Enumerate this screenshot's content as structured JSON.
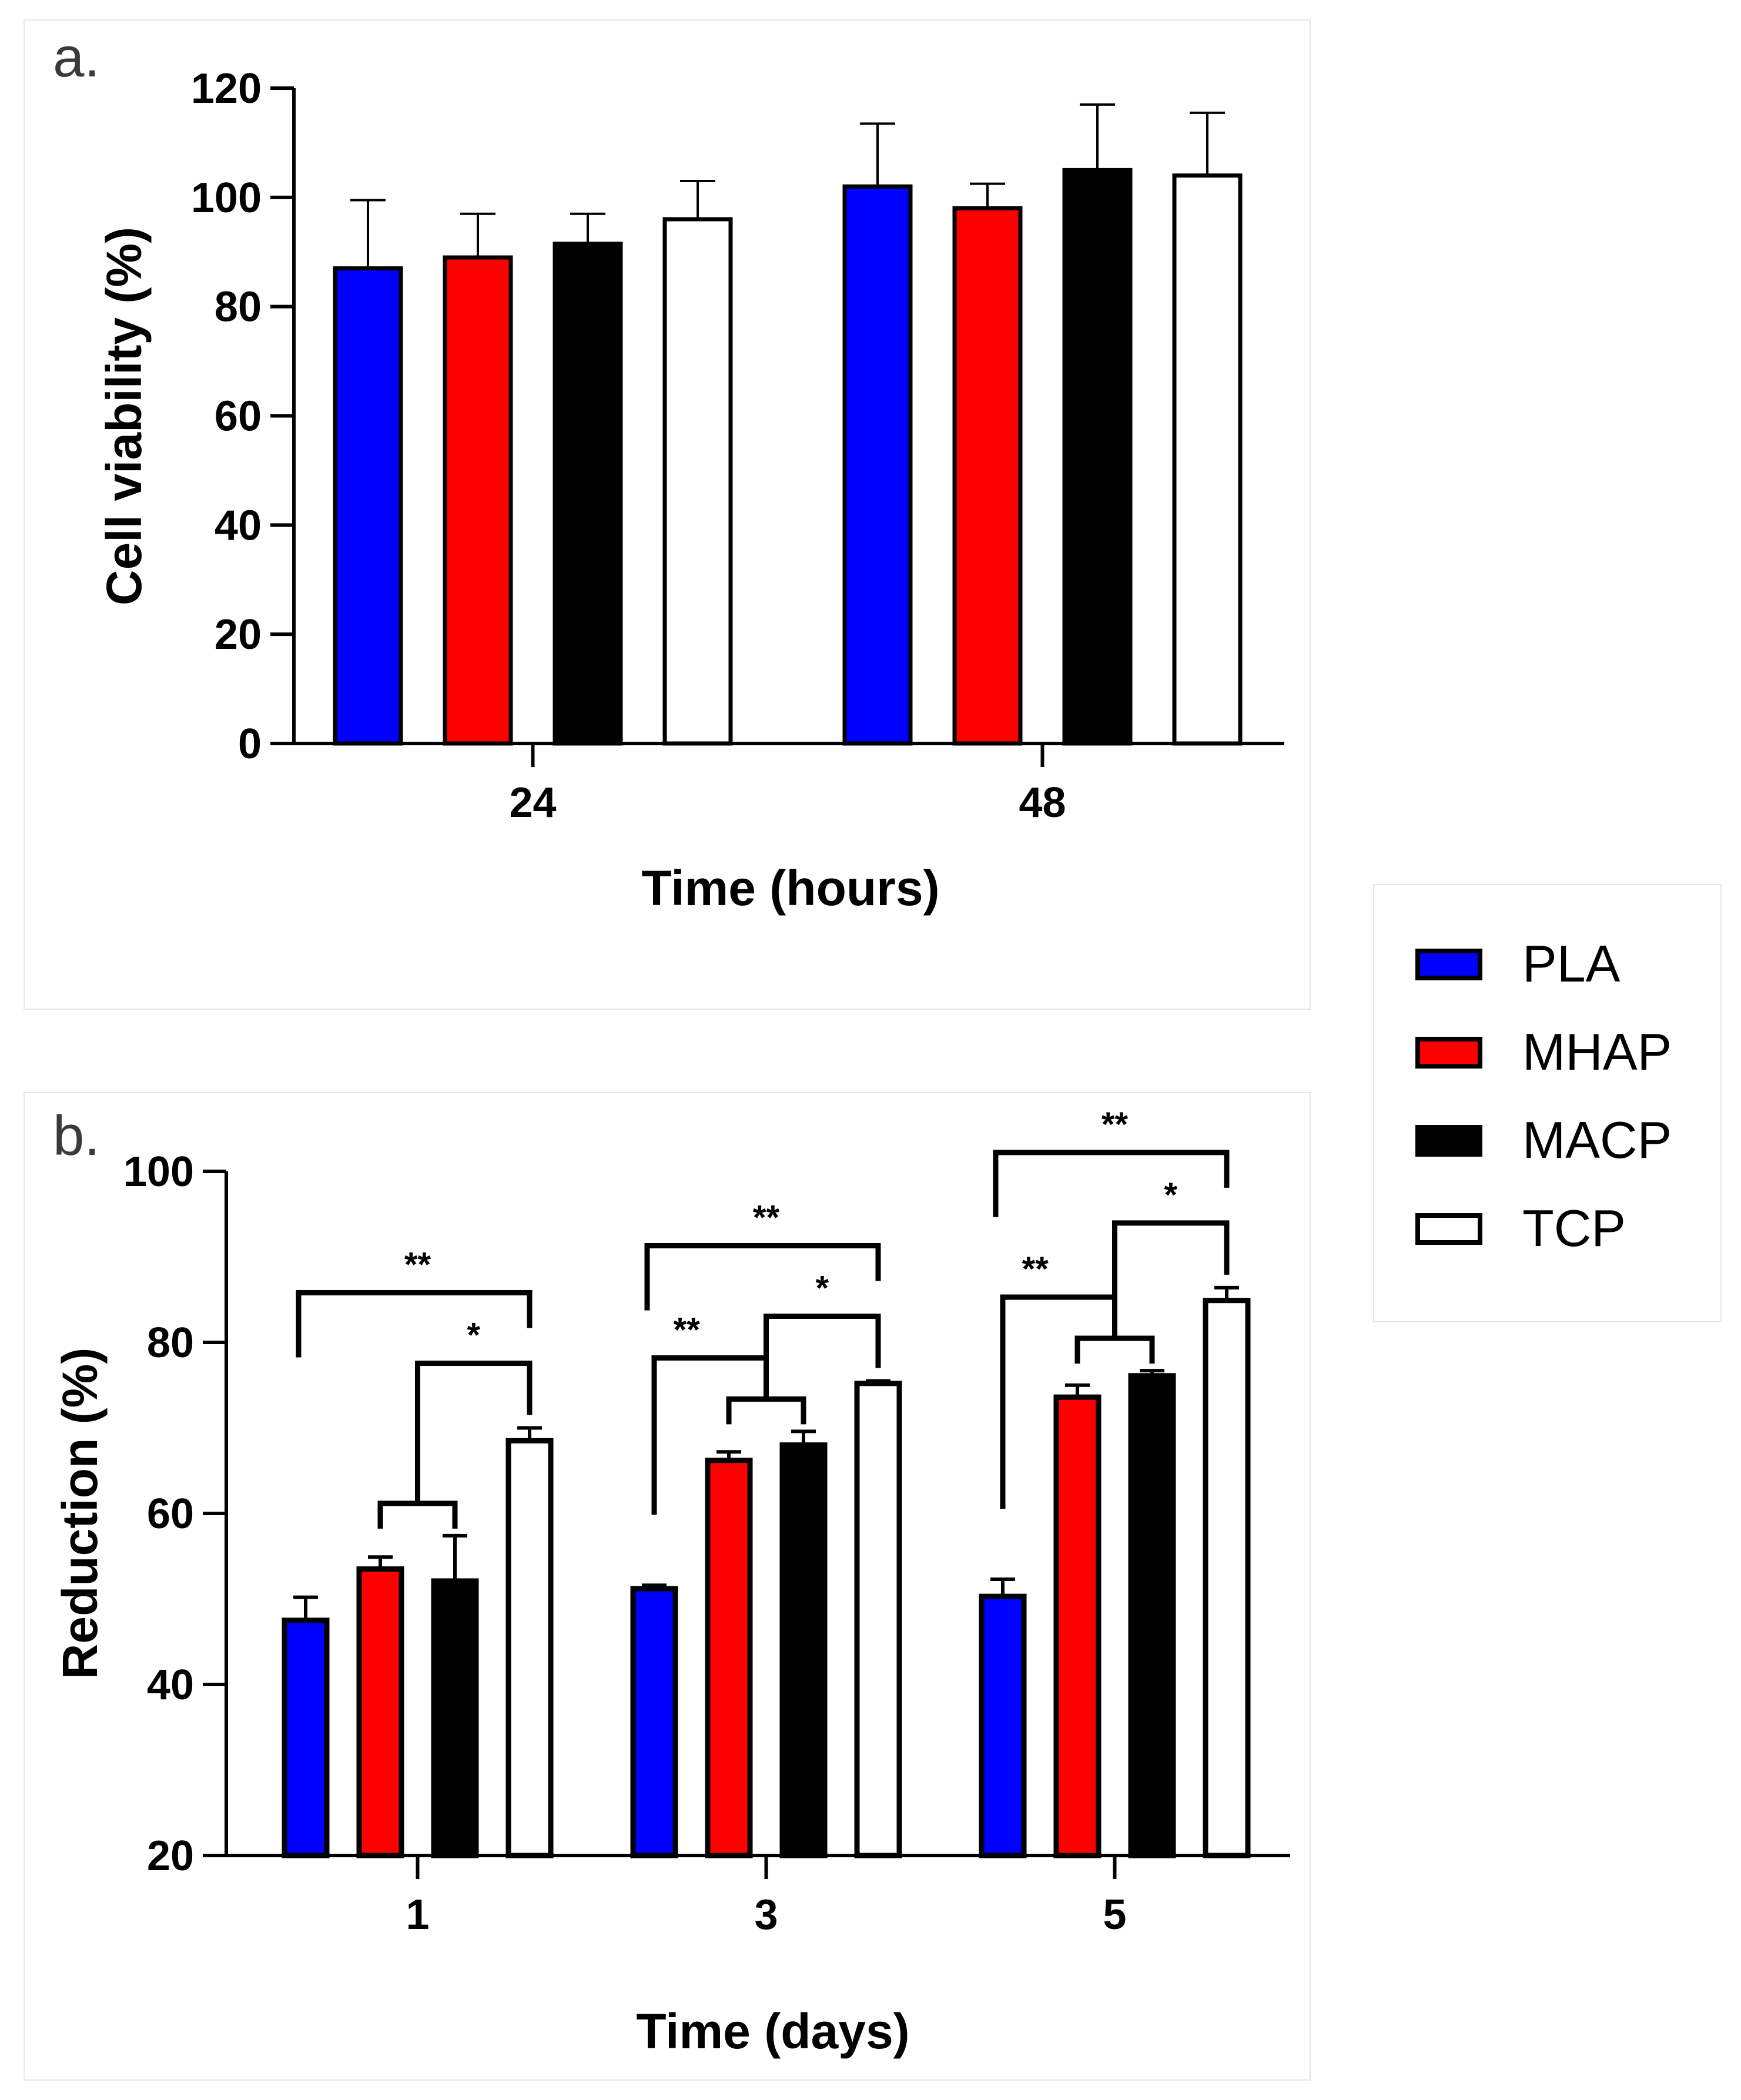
{
  "chart_data": [
    {
      "type": "bar",
      "panel": "a.",
      "categories": [
        "24",
        "48"
      ],
      "series": [
        {
          "name": "PLA",
          "values": [
            87,
            102
          ],
          "errors": [
            12.5,
            11.5
          ],
          "color": "#0000ff"
        },
        {
          "name": "MHAP",
          "values": [
            89,
            98
          ],
          "errors": [
            8,
            4.5
          ],
          "color": "#ff0000"
        },
        {
          "name": "MACP",
          "values": [
            91.5,
            105
          ],
          "errors": [
            5.5,
            12
          ],
          "color": "#000000"
        },
        {
          "name": "TCP",
          "values": [
            96,
            104
          ],
          "errors": [
            7,
            11.5
          ],
          "color": "#ffffff"
        }
      ],
      "xlabel": "Time (hours)",
      "ylabel": "Cell viability (%)",
      "ylim": [
        0,
        120
      ],
      "yticks": [
        "0",
        "20",
        "40",
        "60",
        "80",
        "100",
        "120"
      ]
    },
    {
      "type": "bar",
      "panel": "b.",
      "categories": [
        "1",
        "3",
        "5"
      ],
      "series": [
        {
          "name": "PLA",
          "values": [
            47.5,
            51.2,
            50.3
          ],
          "errors": [
            2.7,
            0.4,
            2.0
          ],
          "color": "#0000ff"
        },
        {
          "name": "MHAP",
          "values": [
            53.5,
            66.2,
            73.6
          ],
          "errors": [
            1.4,
            1.0,
            1.4
          ],
          "color": "#ff0000"
        },
        {
          "name": "MACP",
          "values": [
            52.1,
            68.0,
            76.1
          ],
          "errors": [
            5.3,
            1.6,
            0.6
          ],
          "color": "#000000"
        },
        {
          "name": "TCP",
          "values": [
            68.5,
            75.2,
            84.9
          ],
          "errors": [
            1.5,
            0.3,
            1.5
          ],
          "color": "#ffffff"
        }
      ],
      "xlabel": "Time (days)",
      "ylabel": "Reduction (%)",
      "ylim": [
        20,
        100
      ],
      "yticks": [
        "20",
        "40",
        "60",
        "80",
        "100"
      ],
      "significance": [
        {
          "group": "1",
          "label": "**",
          "from": "PLA",
          "to": "TCP"
        },
        {
          "group": "1",
          "label": "*",
          "from": "MHAP+MACP",
          "to": "TCP"
        },
        {
          "group": "3",
          "label": "**",
          "from": "PLA",
          "to": "TCP"
        },
        {
          "group": "3",
          "label": "*",
          "from": "MHAP+MACP",
          "to": "TCP"
        },
        {
          "group": "3",
          "label": "**",
          "from": "PLA",
          "to": "MHAP+MACP"
        },
        {
          "group": "5",
          "label": "**",
          "from": "PLA",
          "to": "TCP"
        },
        {
          "group": "5",
          "label": "*",
          "from": "MHAP+MACP",
          "to": "TCP"
        },
        {
          "group": "5",
          "label": "**",
          "from": "PLA",
          "to": "MHAP+MACP"
        }
      ]
    }
  ],
  "legend": {
    "items": [
      {
        "label": "PLA",
        "color": "#0000ff"
      },
      {
        "label": "MHAP",
        "color": "#ff0000"
      },
      {
        "label": "MACP",
        "color": "#000000"
      },
      {
        "label": "TCP",
        "color": "#ffffff"
      }
    ]
  }
}
